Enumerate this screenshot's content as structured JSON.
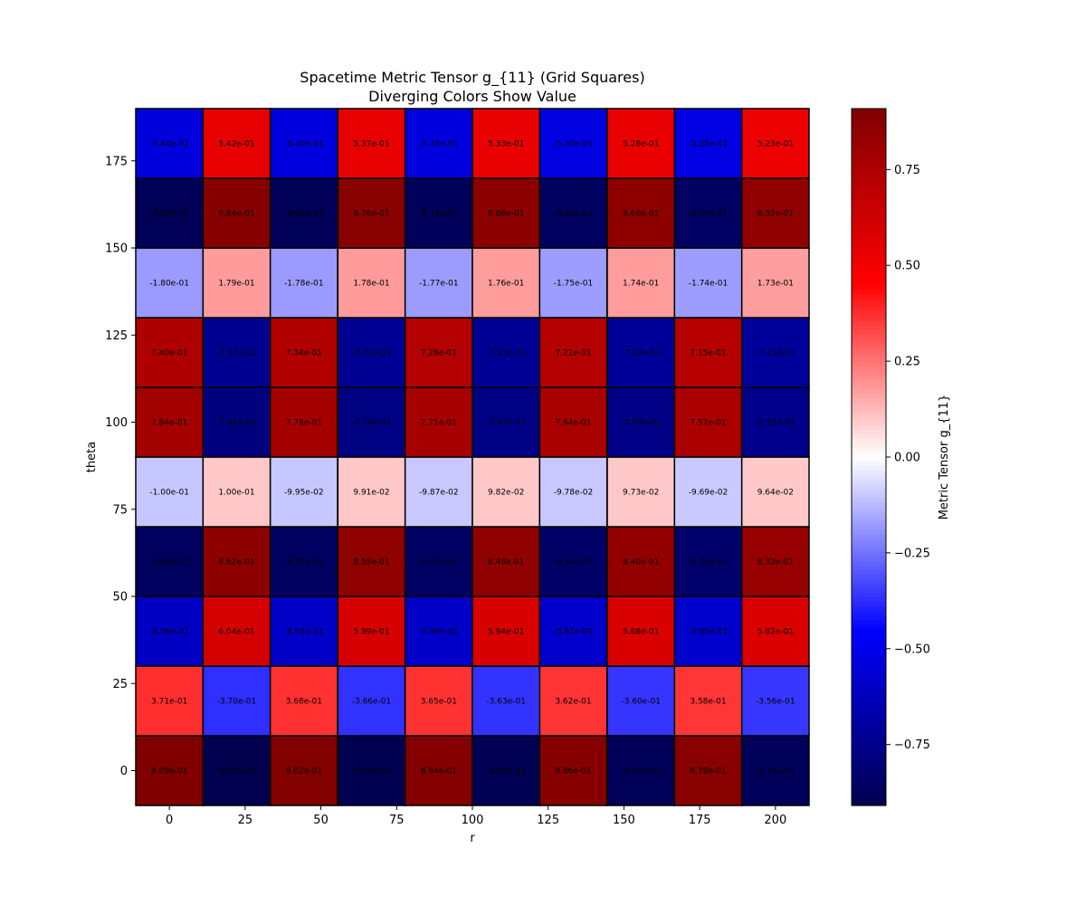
{
  "chart_data": {
    "type": "heatmap",
    "title": "Spacetime Metric Tensor g_{11} (Grid Squares)",
    "subtitle": "Diverging Colors Show Value",
    "xlabel": "r",
    "ylabel": "theta",
    "colorbar_label": "Metric Tensor g_{11}",
    "colormap": "seismic",
    "vmin": -0.909,
    "vmax": 0.909,
    "x": [
      0,
      22.2,
      44.4,
      66.7,
      88.9,
      111.1,
      133.3,
      155.6,
      177.8,
      200
    ],
    "y": [
      0,
      20,
      40,
      60,
      80,
      100,
      120,
      140,
      160,
      180
    ],
    "xlim": [
      -11.1,
      211.1
    ],
    "ylim": [
      -10,
      190
    ],
    "x_ticks": [
      0,
      25,
      50,
      75,
      100,
      125,
      150,
      175,
      200
    ],
    "y_ticks": [
      0,
      25,
      50,
      75,
      100,
      125,
      150,
      175
    ],
    "colorbar_ticks": [
      -0.75,
      -0.5,
      -0.25,
      0.0,
      0.25,
      0.5,
      0.75
    ],
    "colorbar_tick_labels": [
      "−0.75",
      "−0.50",
      "−0.25",
      "0.00",
      "0.25",
      "0.50",
      "0.75"
    ],
    "grid": false,
    "values": [
      [
        0.909,
        -0.906,
        0.902,
        -0.898,
        0.894,
        -0.89,
        0.886,
        -0.882,
        0.878,
        -0.874
      ],
      [
        0.371,
        -0.37,
        0.368,
        -0.366,
        0.365,
        -0.363,
        0.362,
        -0.36,
        0.358,
        -0.356
      ],
      [
        -0.606,
        0.604,
        -0.601,
        0.599,
        -0.596,
        0.594,
        -0.591,
        0.588,
        -0.585,
        0.582
      ],
      [
        -0.866,
        0.862,
        -0.859,
        0.855,
        -0.852,
        0.848,
        -0.844,
        0.84,
        -0.836,
        0.832
      ],
      [
        -0.1,
        0.1,
        -0.0995,
        0.0991,
        -0.0987,
        0.0982,
        -0.0978,
        0.0973,
        -0.0969,
        0.0964
      ],
      [
        0.784,
        -0.781,
        0.778,
        -0.774,
        0.771,
        -0.767,
        0.764,
        -0.76,
        0.757,
        -0.753
      ],
      [
        0.74,
        -0.737,
        0.734,
        -0.731,
        0.728,
        -0.725,
        0.721,
        -0.718,
        0.715,
        -0.711
      ],
      [
        -0.18,
        0.179,
        -0.178,
        0.178,
        -0.177,
        0.176,
        -0.175,
        0.174,
        -0.174,
        0.173
      ],
      [
        -0.887,
        0.884,
        -0.88,
        0.876,
        -0.872,
        0.868,
        -0.864,
        0.86,
        -0.856,
        0.852
      ],
      [
        -0.544,
        0.542,
        -0.54,
        0.537,
        -0.535,
        0.533,
        -0.53,
        0.528,
        -0.525,
        0.523
      ]
    ],
    "labels": [
      [
        "9.09e-01",
        "-9.06e-01",
        "9.02e-01",
        "-8.98e-01",
        "8.94e-01",
        "-8.90e-01",
        "8.86e-01",
        "-8.82e-01",
        "8.78e-01",
        "-8.74e-01"
      ],
      [
        "3.71e-01",
        "-3.70e-01",
        "3.68e-01",
        "-3.66e-01",
        "3.65e-01",
        "-3.63e-01",
        "3.62e-01",
        "-3.60e-01",
        "3.58e-01",
        "-3.56e-01"
      ],
      [
        "-6.06e-01",
        "6.04e-01",
        "-6.01e-01",
        "5.99e-01",
        "-5.96e-01",
        "5.94e-01",
        "-5.91e-01",
        "5.88e-01",
        "-5.85e-01",
        "5.82e-01"
      ],
      [
        "-8.66e-01",
        "8.62e-01",
        "-8.59e-01",
        "8.55e-01",
        "-8.52e-01",
        "8.48e-01",
        "-8.44e-01",
        "8.40e-01",
        "-8.36e-01",
        "8.32e-01"
      ],
      [
        "-1.00e-01",
        "1.00e-01",
        "-9.95e-02",
        "9.91e-02",
        "-9.87e-02",
        "9.82e-02",
        "-9.78e-02",
        "9.73e-02",
        "-9.69e-02",
        "9.64e-02"
      ],
      [
        "7.84e-01",
        "-7.81e-01",
        "7.78e-01",
        "-7.74e-01",
        "7.71e-01",
        "-7.67e-01",
        "7.64e-01",
        "-7.60e-01",
        "7.57e-01",
        "-7.53e-01"
      ],
      [
        "7.40e-01",
        "-7.37e-01",
        "7.34e-01",
        "-7.31e-01",
        "7.28e-01",
        "-7.25e-01",
        "7.21e-01",
        "-7.18e-01",
        "7.15e-01",
        "-7.11e-01"
      ],
      [
        "-1.80e-01",
        "1.79e-01",
        "-1.78e-01",
        "1.78e-01",
        "-1.77e-01",
        "1.76e-01",
        "-1.75e-01",
        "1.74e-01",
        "-1.74e-01",
        "1.73e-01"
      ],
      [
        "-8.87e-01",
        "8.84e-01",
        "-8.80e-01",
        "8.76e-01",
        "-8.72e-01",
        "8.68e-01",
        "-8.64e-01",
        "8.60e-01",
        "-8.56e-01",
        "8.52e-01"
      ],
      [
        "-5.44e-01",
        "5.42e-01",
        "-5.40e-01",
        "5.37e-01",
        "-5.35e-01",
        "5.33e-01",
        "-5.30e-01",
        "5.28e-01",
        "-5.25e-01",
        "5.23e-01"
      ]
    ]
  }
}
